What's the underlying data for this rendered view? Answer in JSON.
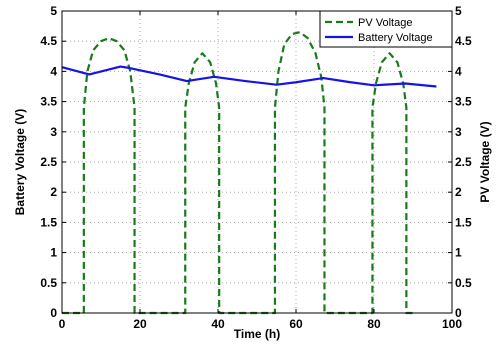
{
  "chart_data": {
    "type": "line",
    "title": "",
    "xlabel": "Time (h)",
    "ylabel_left": "Battery Voltage (V)",
    "ylabel_right": "PV Voltage (V)",
    "xlim": [
      0,
      100
    ],
    "ylim": [
      0,
      5
    ],
    "x_ticks": [
      0,
      20,
      40,
      60,
      80,
      100
    ],
    "y_ticks": [
      0,
      0.5,
      1,
      1.5,
      2,
      2.5,
      3,
      3.5,
      4,
      4.5,
      5
    ],
    "x_tick_labels": [
      "0",
      "20",
      "40",
      "60",
      "80",
      "100"
    ],
    "y_tick_labels": [
      "0",
      "0.5",
      "1",
      "1.5",
      "2",
      "2.5",
      "3",
      "3.5",
      "4",
      "4.5",
      "5"
    ],
    "grid": true,
    "legend_position": "top-right",
    "series": [
      {
        "name": "PV Voltage",
        "color": "#1a7a1a",
        "style": "dashed",
        "axis": "right",
        "x": [
          0,
          5.6,
          5.6,
          6.5,
          8,
          10,
          12,
          14,
          16,
          17.5,
          18.6,
          18.6,
          31.6,
          31.6,
          32.5,
          34,
          36,
          38,
          39.5,
          40.3,
          40.3,
          54.6,
          54.6,
          55.5,
          57,
          59,
          61,
          63,
          65,
          66.5,
          67.3,
          67.3,
          79.6,
          79.6,
          80.5,
          82,
          84,
          86,
          87.5,
          88.3,
          88.3,
          90
        ],
        "y": [
          0,
          0,
          3.4,
          4.0,
          4.35,
          4.5,
          4.55,
          4.5,
          4.35,
          4.0,
          3.4,
          0,
          0,
          3.4,
          3.8,
          4.15,
          4.3,
          4.15,
          3.8,
          3.4,
          0,
          0,
          3.4,
          4.0,
          4.45,
          4.62,
          4.65,
          4.55,
          4.3,
          3.9,
          3.4,
          0,
          0,
          3.4,
          3.8,
          4.15,
          4.3,
          4.15,
          3.8,
          3.4,
          0,
          0
        ]
      },
      {
        "name": "Battery Voltage",
        "color": "#1414e6",
        "style": "solid",
        "axis": "left",
        "x": [
          0,
          7,
          15,
          17,
          25,
          32,
          39,
          47,
          55,
          60,
          67,
          74,
          80,
          88,
          96
        ],
        "y": [
          4.07,
          3.95,
          4.08,
          4.06,
          3.95,
          3.84,
          3.91,
          3.84,
          3.78,
          3.82,
          3.89,
          3.82,
          3.77,
          3.8,
          3.75
        ]
      }
    ]
  }
}
